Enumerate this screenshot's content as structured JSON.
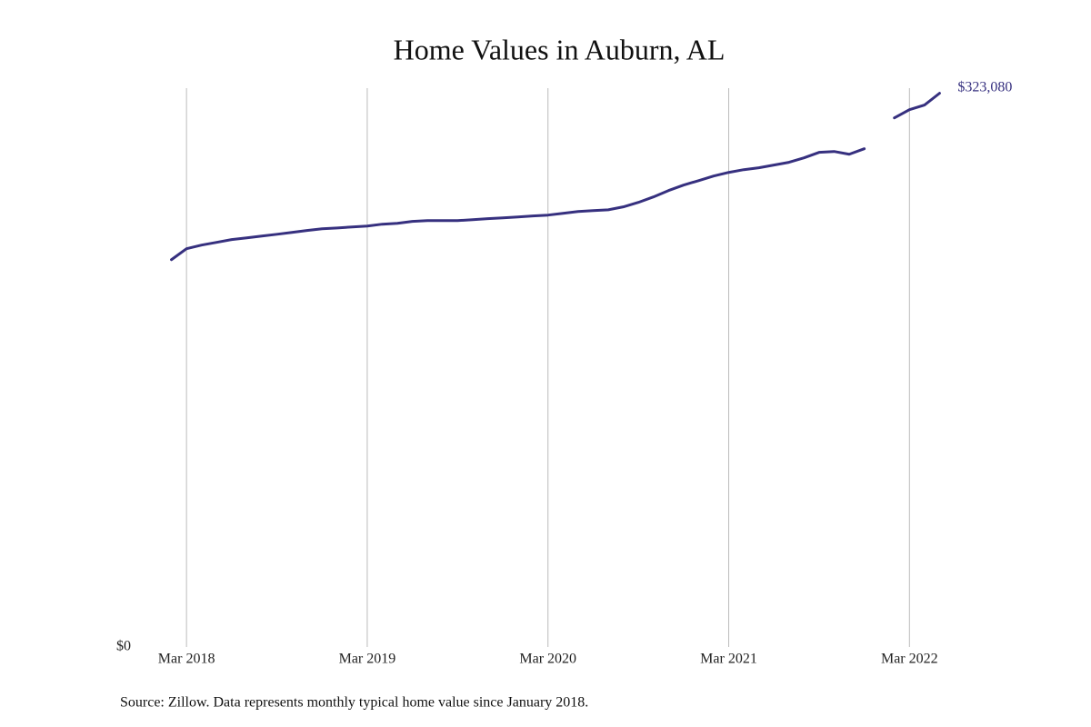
{
  "chart_data": {
    "type": "line",
    "title": "Home Values in Auburn, AL",
    "source": "Source: Zillow. Data represents monthly typical home value since January 2018.",
    "x": [
      "2018-02",
      "2018-03",
      "2018-04",
      "2018-05",
      "2018-06",
      "2018-07",
      "2018-08",
      "2018-09",
      "2018-10",
      "2018-11",
      "2018-12",
      "2019-01",
      "2019-02",
      "2019-03",
      "2019-04",
      "2019-05",
      "2019-06",
      "2019-07",
      "2019-08",
      "2019-09",
      "2019-10",
      "2019-11",
      "2019-12",
      "2020-01",
      "2020-02",
      "2020-03",
      "2020-04",
      "2020-05",
      "2020-06",
      "2020-07",
      "2020-08",
      "2020-09",
      "2020-10",
      "2020-11",
      "2020-12",
      "2021-01",
      "2021-02",
      "2021-03",
      "2021-04",
      "2021-05",
      "2021-06",
      "2021-07",
      "2021-08",
      "2021-09",
      "2021-10",
      "2021-11",
      "2021-12",
      "2022-01",
      "2022-02",
      "2022-03",
      "2022-04",
      "2022-05"
    ],
    "series": [
      {
        "name": "Typical home value",
        "color": "#36307f",
        "values": [
          226000,
          232400,
          234500,
          236100,
          237700,
          238700,
          239800,
          240800,
          241900,
          243000,
          244000,
          244500,
          245100,
          245600,
          246700,
          247200,
          248300,
          248800,
          248800,
          248800,
          249300,
          249900,
          250400,
          250900,
          251500,
          252000,
          253000,
          254100,
          254600,
          255100,
          256800,
          259400,
          262600,
          266300,
          269500,
          272100,
          274800,
          276900,
          278500,
          279600,
          281200,
          282800,
          285400,
          288600,
          289100,
          287500,
          290700,
          null,
          308700,
          313500,
          316200,
          323080
        ],
        "value_labels": [
          null,
          null,
          null,
          null,
          null,
          null,
          null,
          null,
          null,
          null,
          null,
          null,
          null,
          null,
          null,
          null,
          null,
          null,
          null,
          null,
          null,
          null,
          null,
          null,
          null,
          null,
          null,
          null,
          null,
          null,
          null,
          null,
          null,
          null,
          null,
          null,
          null,
          null,
          null,
          null,
          null,
          null,
          null,
          null,
          null,
          null,
          null,
          null,
          null,
          null,
          null,
          "$323,080"
        ]
      }
    ],
    "xlim": [
      "2018-01",
      "2022-06"
    ],
    "xticks": [
      {
        "value": "2018-03",
        "label": "Mar 2018"
      },
      {
        "value": "2019-03",
        "label": "Mar 2019"
      },
      {
        "value": "2020-03",
        "label": "Mar 2020"
      },
      {
        "value": "2021-03",
        "label": "Mar 2021"
      },
      {
        "value": "2022-03",
        "label": "Mar 2022"
      }
    ],
    "ylim": [
      0,
      325000
    ],
    "yticks": [
      {
        "value": 0,
        "label": "$0"
      }
    ],
    "grid": true
  }
}
